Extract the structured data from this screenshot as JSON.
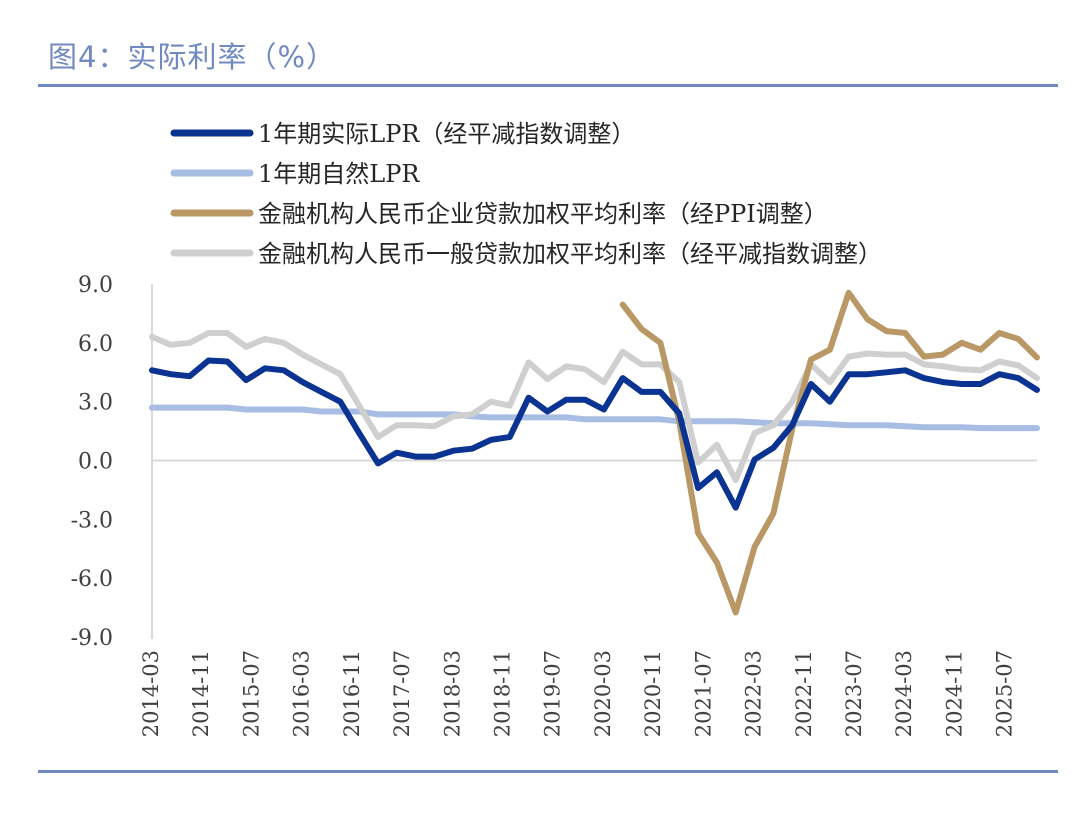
{
  "title": "图4：实际利率（%）",
  "chart_data": {
    "type": "line",
    "title": "图4：实际利率（%）",
    "xlabel": "",
    "ylabel": "",
    "ylim": [
      -9,
      9
    ],
    "yticks": [
      "9.0",
      "6.0",
      "3.0",
      "0.0",
      "-3.0",
      "-6.0",
      "-9.0"
    ],
    "ytick_values": [
      9,
      6,
      3,
      0,
      -3,
      -6,
      -9
    ],
    "xtick_labels": [
      "2014-03",
      "2014-11",
      "2015-07",
      "2016-03",
      "2016-11",
      "2017-07",
      "2018-03",
      "2018-11",
      "2019-07",
      "2020-03",
      "2020-11",
      "2021-07",
      "2022-03",
      "2022-11",
      "2023-07",
      "2024-03",
      "2024-11",
      "2025-07"
    ],
    "grid": false,
    "legend_position": "top",
    "x": [
      "2014-03",
      "2014-06",
      "2014-09",
      "2014-12",
      "2015-03",
      "2015-06",
      "2015-09",
      "2015-12",
      "2016-03",
      "2016-06",
      "2016-09",
      "2016-12",
      "2017-03",
      "2017-06",
      "2017-09",
      "2017-12",
      "2018-03",
      "2018-06",
      "2018-09",
      "2018-12",
      "2019-03",
      "2019-06",
      "2019-09",
      "2019-12",
      "2020-03",
      "2020-06",
      "2020-09",
      "2020-12",
      "2021-03",
      "2021-06",
      "2021-09",
      "2021-12",
      "2022-03",
      "2022-06",
      "2022-09",
      "2022-12",
      "2023-03",
      "2023-06",
      "2023-09",
      "2023-12",
      "2024-03",
      "2024-06",
      "2024-09",
      "2024-12",
      "2025-03",
      "2025-06",
      "2025-09",
      "2025-12"
    ],
    "series": [
      {
        "name": "1年期实际LPR（经平减指数调整）",
        "color": "#0b3391",
        "values": [
          4.6,
          4.4,
          4.3,
          5.1,
          5.05,
          4.1,
          4.7,
          4.6,
          4.0,
          3.5,
          3.0,
          1.4,
          -0.15,
          0.4,
          0.2,
          0.2,
          0.5,
          0.6,
          1.05,
          1.2,
          3.2,
          2.5,
          3.1,
          3.1,
          2.6,
          4.2,
          3.5,
          3.5,
          2.4,
          -1.4,
          -0.6,
          -2.4,
          0.05,
          0.65,
          1.8,
          3.9,
          3.0,
          4.4,
          4.4,
          4.5,
          4.6,
          4.2,
          4.0,
          3.9,
          3.9,
          4.4,
          4.2,
          3.6
        ]
      },
      {
        "name": "1年期自然LPR",
        "color": "#a8bde4",
        "values": [
          2.7,
          2.7,
          2.7,
          2.7,
          2.7,
          2.6,
          2.6,
          2.6,
          2.6,
          2.5,
          2.5,
          2.5,
          2.35,
          2.35,
          2.35,
          2.35,
          2.35,
          2.25,
          2.2,
          2.2,
          2.2,
          2.2,
          2.2,
          2.1,
          2.1,
          2.1,
          2.1,
          2.1,
          2.0,
          2.0,
          2.0,
          2.0,
          1.95,
          1.9,
          1.9,
          1.9,
          1.85,
          1.8,
          1.8,
          1.8,
          1.75,
          1.7,
          1.7,
          1.7,
          1.65,
          1.65,
          1.65,
          1.65
        ]
      },
      {
        "name": "金融机构人民币企业贷款加权平均利率（经PPI调整）",
        "color": "#b99866",
        "values": [
          null,
          null,
          null,
          null,
          null,
          null,
          null,
          null,
          null,
          null,
          null,
          null,
          null,
          null,
          null,
          null,
          null,
          null,
          null,
          null,
          null,
          null,
          null,
          null,
          null,
          7.95,
          6.7,
          6.0,
          2.0,
          -3.7,
          -5.2,
          -7.75,
          -4.4,
          -2.7,
          1.6,
          5.15,
          5.65,
          8.55,
          7.2,
          6.6,
          6.5,
          5.3,
          5.4,
          6.0,
          5.65,
          6.5,
          6.2,
          5.25
        ]
      },
      {
        "name": "金融机构人民币一般贷款加权平均利率（经平减指数调整）",
        "color": "#d0cfcf",
        "values": [
          6.3,
          5.9,
          6.0,
          6.5,
          6.5,
          5.8,
          6.2,
          6.0,
          5.4,
          4.9,
          4.4,
          2.8,
          1.2,
          1.8,
          1.8,
          1.75,
          2.25,
          2.35,
          3.0,
          2.8,
          5.0,
          4.15,
          4.8,
          4.65,
          4.0,
          5.55,
          4.9,
          4.9,
          4.0,
          -0.1,
          0.8,
          -1.0,
          1.4,
          1.8,
          3.0,
          4.9,
          4.0,
          5.3,
          5.45,
          5.4,
          5.4,
          4.9,
          4.8,
          4.65,
          4.6,
          5.05,
          4.85,
          4.2
        ]
      }
    ]
  },
  "colors": {
    "title": "#7089c2",
    "rule": "#7089c2",
    "axis": "#d9d9d9",
    "tick_text": "#404040"
  }
}
